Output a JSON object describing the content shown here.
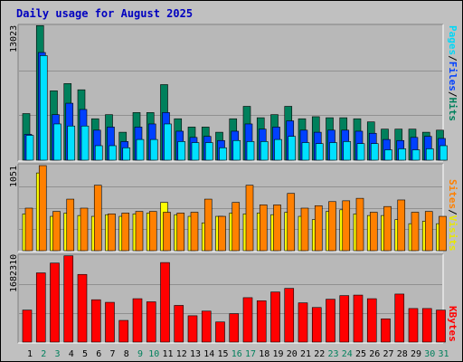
{
  "title": "Daily usage for August 2025",
  "colors": {
    "background": "#c0c0c0",
    "panel": "#b8b8b8",
    "gridline": "#909090",
    "title": "#0000c0",
    "hits": "#00805c",
    "files": "#0040ff",
    "pages": "#00e0ff",
    "visits": "#ffff00",
    "sites": "#ff8000",
    "kbytes": "#ff0000",
    "weekend_day": "#00805c",
    "weekday": "#000000"
  },
  "chart_data": [
    {
      "type": "bar",
      "title": "Daily usage for August 2025",
      "legend": [
        "Pages",
        "Files",
        "Hits"
      ],
      "legend_colors": [
        "#00e0ff",
        "#0040ff",
        "#00805c"
      ],
      "ymax_label": "13023",
      "ylim": [
        0,
        13023
      ],
      "grid": true,
      "categories": [
        "1",
        "2",
        "3",
        "4",
        "5",
        "6",
        "7",
        "8",
        "9",
        "10",
        "11",
        "12",
        "13",
        "14",
        "15",
        "16",
        "17",
        "18",
        "19",
        "20",
        "21",
        "22",
        "23",
        "24",
        "25",
        "26",
        "27",
        "28",
        "29",
        "30",
        "31"
      ],
      "weekend": [
        "2",
        "3",
        "9",
        "10",
        "16",
        "17",
        "23",
        "24",
        "30",
        "31"
      ],
      "series": [
        {
          "name": "Hits",
          "values": [
            4500,
            13000,
            6700,
            7400,
            6800,
            4000,
            4400,
            2700,
            4600,
            4600,
            7300,
            4000,
            3200,
            3200,
            2700,
            4000,
            5200,
            4100,
            4400,
            5200,
            4000,
            4200,
            4100,
            4100,
            4000,
            3700,
            3000,
            3000,
            3000,
            2700,
            2900
          ]
        },
        {
          "name": "Files",
          "values": [
            2500,
            10400,
            4400,
            5500,
            4900,
            2900,
            3200,
            1800,
            3200,
            3500,
            4600,
            2800,
            2200,
            2300,
            1900,
            2800,
            3500,
            3000,
            3200,
            3800,
            2900,
            2700,
            2900,
            2900,
            2800,
            2600,
            2000,
            1900,
            2200,
            2300,
            2100
          ]
        },
        {
          "name": "Pages",
          "values": [
            2400,
            10100,
            3500,
            3300,
            3300,
            1400,
            1400,
            1200,
            2000,
            2000,
            3500,
            1800,
            1700,
            1700,
            1200,
            1900,
            1800,
            1800,
            2000,
            2300,
            1700,
            1600,
            1700,
            1800,
            1600,
            1600,
            1000,
            1100,
            1000,
            1100,
            1400
          ]
        }
      ]
    },
    {
      "type": "bar",
      "legend": [
        "Sites",
        "Visits"
      ],
      "legend_colors": [
        "#ff8000",
        "#ffff00"
      ],
      "ymax_label": "1051",
      "ylim": [
        0,
        1051
      ],
      "grid": true,
      "categories": [
        "1",
        "2",
        "3",
        "4",
        "5",
        "6",
        "7",
        "8",
        "9",
        "10",
        "11",
        "12",
        "13",
        "14",
        "15",
        "16",
        "17",
        "18",
        "19",
        "20",
        "21",
        "22",
        "23",
        "24",
        "25",
        "26",
        "27",
        "28",
        "29",
        "30",
        "31"
      ],
      "series": [
        {
          "name": "Visits",
          "values": [
            450,
            950,
            420,
            460,
            430,
            420,
            440,
            420,
            450,
            460,
            590,
            440,
            420,
            340,
            420,
            460,
            450,
            460,
            440,
            470,
            420,
            380,
            480,
            500,
            450,
            430,
            430,
            380,
            330,
            360,
            330
          ]
        },
        {
          "name": "Sites",
          "values": [
            520,
            1040,
            480,
            630,
            520,
            800,
            450,
            460,
            480,
            480,
            470,
            460,
            470,
            630,
            420,
            590,
            800,
            560,
            560,
            700,
            520,
            550,
            600,
            610,
            640,
            470,
            540,
            620,
            470,
            480,
            420
          ]
        }
      ]
    },
    {
      "type": "bar",
      "legend": [
        "KBytes"
      ],
      "legend_colors": [
        "#ff0000"
      ],
      "ymax_label": "1682310",
      "ylim": [
        0,
        1682310
      ],
      "grid": true,
      "categories": [
        "1",
        "2",
        "3",
        "4",
        "5",
        "6",
        "7",
        "8",
        "9",
        "10",
        "11",
        "12",
        "13",
        "14",
        "15",
        "16",
        "17",
        "18",
        "19",
        "20",
        "21",
        "22",
        "23",
        "24",
        "25",
        "26",
        "27",
        "28",
        "29",
        "30",
        "31"
      ],
      "series": [
        {
          "name": "KBytes",
          "values": [
            620000,
            1340000,
            1530000,
            1670000,
            1310000,
            820000,
            770000,
            420000,
            840000,
            780000,
            1540000,
            710000,
            510000,
            600000,
            390000,
            550000,
            860000,
            800000,
            970000,
            1040000,
            760000,
            670000,
            830000,
            900000,
            910000,
            840000,
            450000,
            930000,
            650000,
            650000,
            620000
          ]
        }
      ]
    }
  ]
}
